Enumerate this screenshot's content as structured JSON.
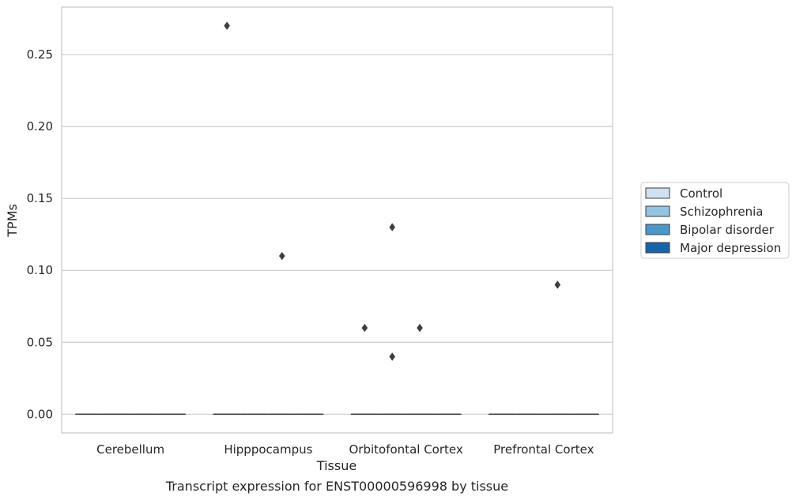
{
  "caption": "Transcript expression for ENST00000596998 by tissue",
  "chart_data": {
    "type": "box",
    "xlabel": "Tissue",
    "ylabel": "TPMs",
    "categories": [
      "Cerebellum",
      "Hipppocampus",
      "Orbitofontal Cortex",
      "Prefrontal Cortex"
    ],
    "hue_order": [
      "Control",
      "Schizophrenia",
      "Bipolar disorder",
      "Major depression"
    ],
    "hue_colors": [
      "#d0e1f2",
      "#94c4df",
      "#4a98c9",
      "#1764ab"
    ],
    "ylim": [
      -0.013,
      0.283
    ],
    "yticks": [
      "0.00",
      "0.05",
      "0.10",
      "0.15",
      "0.20",
      "0.25"
    ],
    "grid": true,
    "legend_position": "right",
    "boxes": [
      {
        "category": "Cerebellum",
        "group": "Control",
        "median": 0,
        "q1": 0,
        "q3": 0
      },
      {
        "category": "Cerebellum",
        "group": "Schizophrenia",
        "median": 0,
        "q1": 0,
        "q3": 0
      },
      {
        "category": "Cerebellum",
        "group": "Bipolar disorder",
        "median": 0,
        "q1": 0,
        "q3": 0
      },
      {
        "category": "Cerebellum",
        "group": "Major depression",
        "median": 0,
        "q1": 0,
        "q3": 0
      },
      {
        "category": "Hipppocampus",
        "group": "Control",
        "median": 0,
        "q1": 0,
        "q3": 0
      },
      {
        "category": "Hipppocampus",
        "group": "Schizophrenia",
        "median": 0,
        "q1": 0,
        "q3": 0
      },
      {
        "category": "Hipppocampus",
        "group": "Bipolar disorder",
        "median": 0,
        "q1": 0,
        "q3": 0
      },
      {
        "category": "Hipppocampus",
        "group": "Major depression",
        "median": 0,
        "q1": 0,
        "q3": 0
      },
      {
        "category": "Orbitofontal Cortex",
        "group": "Control",
        "median": 0,
        "q1": 0,
        "q3": 0
      },
      {
        "category": "Orbitofontal Cortex",
        "group": "Schizophrenia",
        "median": 0,
        "q1": 0,
        "q3": 0
      },
      {
        "category": "Orbitofontal Cortex",
        "group": "Bipolar disorder",
        "median": 0,
        "q1": 0,
        "q3": 0
      },
      {
        "category": "Orbitofontal Cortex",
        "group": "Major depression",
        "median": 0,
        "q1": 0,
        "q3": 0
      },
      {
        "category": "Prefrontal Cortex",
        "group": "Control",
        "median": 0,
        "q1": 0,
        "q3": 0
      },
      {
        "category": "Prefrontal Cortex",
        "group": "Schizophrenia",
        "median": 0,
        "q1": 0,
        "q3": 0
      },
      {
        "category": "Prefrontal Cortex",
        "group": "Bipolar disorder",
        "median": 0,
        "q1": 0,
        "q3": 0
      },
      {
        "category": "Prefrontal Cortex",
        "group": "Major depression",
        "median": 0,
        "q1": 0,
        "q3": 0
      }
    ],
    "outliers": [
      {
        "category": "Hipppocampus",
        "group": "Control",
        "value": 0.27
      },
      {
        "category": "Hipppocampus",
        "group": "Bipolar disorder",
        "value": 0.11
      },
      {
        "category": "Orbitofontal Cortex",
        "group": "Control",
        "value": 0.06
      },
      {
        "category": "Orbitofontal Cortex",
        "group": "Schizophrenia",
        "value": 0.13
      },
      {
        "category": "Orbitofontal Cortex",
        "group": "Schizophrenia",
        "value": 0.04
      },
      {
        "category": "Orbitofontal Cortex",
        "group": "Bipolar disorder",
        "value": 0.06
      },
      {
        "category": "Prefrontal Cortex",
        "group": "Bipolar disorder",
        "value": 0.09
      }
    ]
  }
}
